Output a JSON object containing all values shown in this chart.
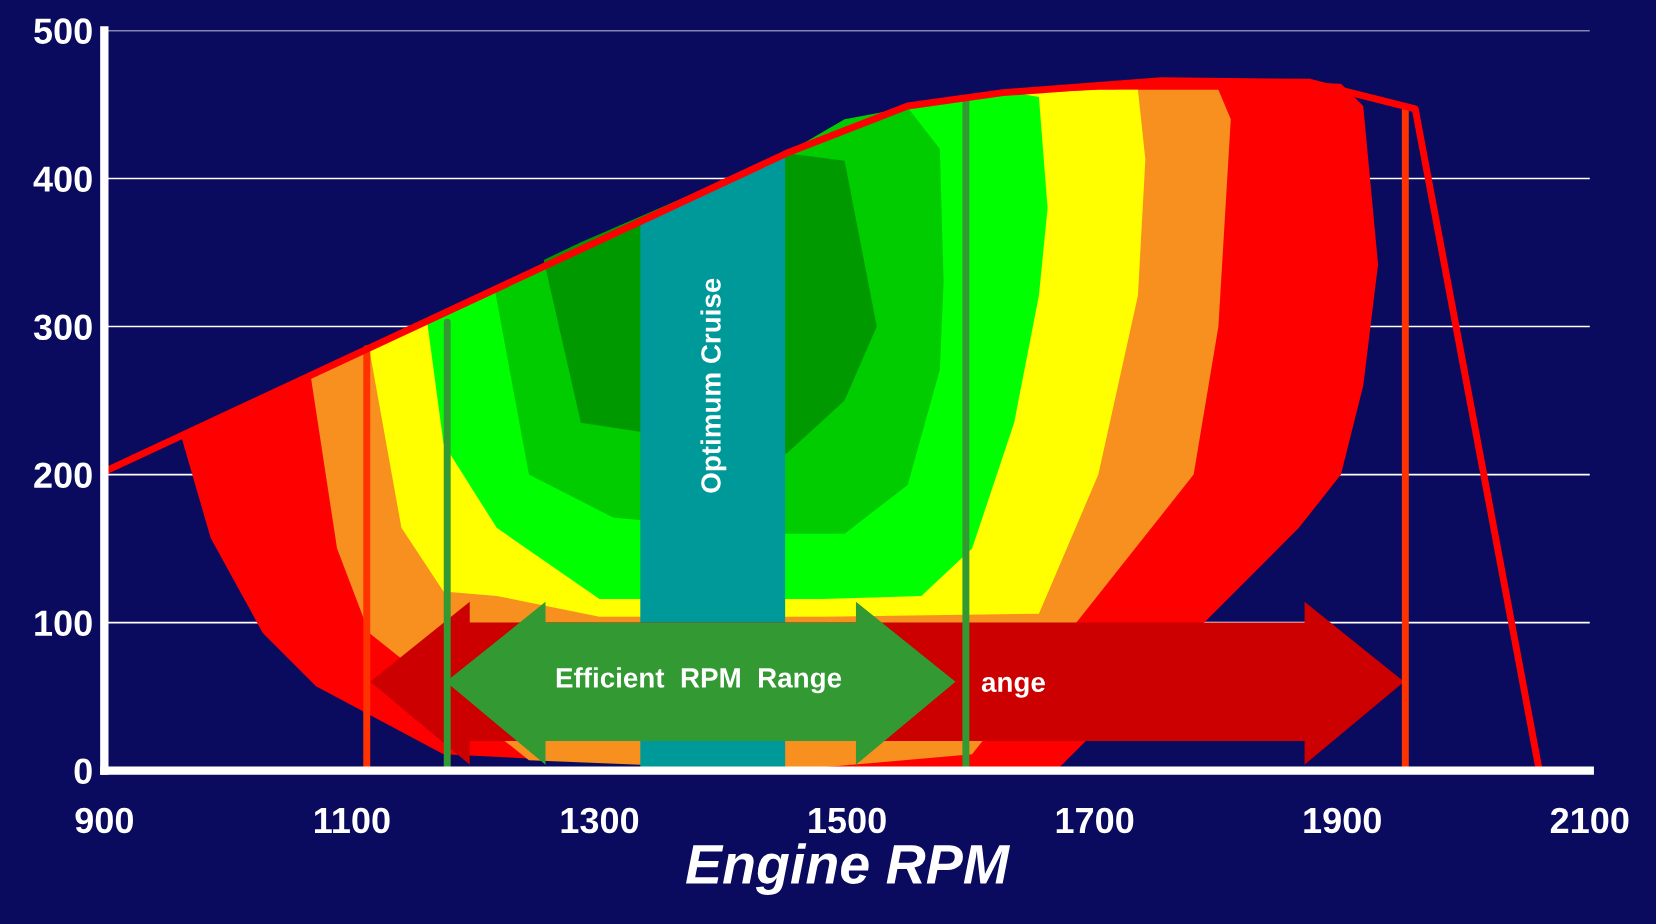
{
  "chart_data": {
    "type": "area",
    "xlabel": "Engine RPM",
    "xlim": [
      900,
      2100
    ],
    "xticks": [
      900,
      1100,
      1300,
      1500,
      1700,
      1900,
      2100
    ],
    "ylim": [
      0,
      500
    ],
    "yticks": [
      0,
      100,
      200,
      300,
      400,
      500
    ],
    "grid": "y",
    "series": [
      {
        "color": "#ff0000",
        "x": [
          962,
          986,
          1028,
          1071,
          1174,
          1450,
          1669,
          1797,
          1865,
          1899,
          1917,
          1929,
          1917,
          1899,
          1865,
          1669,
          1450,
          1174,
          1071,
          1028,
          986
        ],
        "values": [
          226,
          236,
          252,
          269,
          309,
          417,
          462,
          466,
          465,
          464,
          449,
          342,
          260,
          200,
          164,
          0,
          0,
          11,
          57,
          93,
          157
        ]
      },
      {
        "color": "#f7901e",
        "x": [
          1067,
          1088,
          1114,
          1157,
          1243,
          1450,
          1601,
          1720,
          1780,
          1800,
          1810,
          1800,
          1780,
          1601,
          1450,
          1243,
          1114,
          1088
        ],
        "values": [
          265,
          275,
          285,
          302,
          336,
          417,
          455,
          460,
          460,
          460,
          440,
          300,
          200,
          11,
          0,
          7,
          93,
          150
        ]
      },
      {
        "color": "#ffff00",
        "x": [
          1114,
          1140,
          1174,
          1217,
          1450,
          1648,
          1703,
          1735,
          1741,
          1735,
          1703,
          1655,
          1480,
          1300,
          1217,
          1174,
          1140
        ],
        "values": [
          285,
          297,
          310,
          327,
          417,
          458,
          460,
          460,
          413,
          321,
          200,
          106,
          104,
          104,
          118,
          121,
          164
        ]
      },
      {
        "color": "#00ff00",
        "x": [
          1161,
          1174,
          1217,
          1328,
          1541,
          1601,
          1635,
          1655,
          1662,
          1655,
          1635,
          1601,
          1560,
          1480,
          1300,
          1217,
          1174
        ],
        "values": [
          302,
          310,
          327,
          370,
          448,
          456,
          458,
          455,
          380,
          321,
          235,
          150,
          118,
          116,
          116,
          164,
          221
        ]
      },
      {
        "color": "#00cc00",
        "x": [
          1215,
          1243,
          1311,
          1451,
          1498,
          1549,
          1575,
          1578,
          1575,
          1549,
          1498,
          1451,
          1311,
          1243
        ],
        "values": [
          327,
          338,
          366,
          417,
          440,
          448,
          420,
          330,
          271,
          193,
          160,
          160,
          171,
          200
        ]
      },
      {
        "color": "#009900",
        "x": [
          1255,
          1285,
          1451,
          1498,
          1524,
          1498,
          1451,
          1285
        ],
        "values": [
          345,
          357,
          417,
          412,
          300,
          250,
          214,
          235
        ]
      },
      {
        "color": "#009999",
        "x": [
          1333,
          1450,
          1450,
          1333
        ],
        "values": [
          369,
          417,
          0,
          0
        ]
      },
      {
        "type": "line",
        "color": "#ff3300",
        "x": [
          1112,
          1112
        ],
        "values": [
          0,
          285
        ]
      },
      {
        "type": "line",
        "color": "#339933",
        "x": [
          1177,
          1177
        ],
        "values": [
          0,
          303
        ]
      },
      {
        "type": "line",
        "color": "#339933",
        "x": [
          1596,
          1596
        ],
        "values": [
          0,
          453
        ]
      },
      {
        "type": "line",
        "color": "#ff3300",
        "x": [
          1951,
          1951
        ],
        "values": [
          0,
          446
        ]
      },
      {
        "type": "line",
        "color": "#ff0000",
        "x": [
          900,
          1451,
          1549,
          1626,
          1754,
          1874,
          1959,
          2059
        ],
        "values": [
          202,
          417,
          449,
          458,
          466,
          465,
          447,
          1
        ]
      }
    ],
    "annotations": [
      "Optimum Cruise",
      "Efficient  RPM  Range",
      "ange"
    ]
  }
}
